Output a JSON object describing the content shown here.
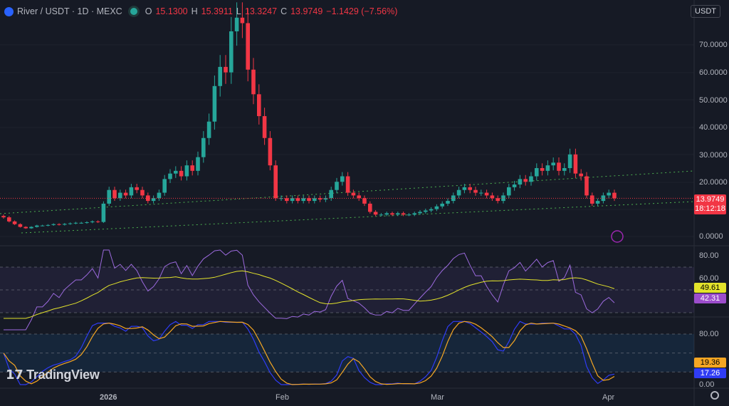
{
  "header": {
    "symbol": "River / USDT · 1D · MEXC",
    "o_label": "O",
    "o": "15.1300",
    "h_label": "H",
    "h": "15.3911",
    "l_label": "L",
    "l": "13.3247",
    "c_label": "C",
    "c": "13.9749",
    "change": "−1.1429 (−7.56%)"
  },
  "currency_button": "USDT",
  "brand": "TradingView",
  "price_axis": [
    "70.0000",
    "60.0000",
    "50.0000",
    "40.0000",
    "30.0000",
    "20.0000",
    "0.0000"
  ],
  "last_price": {
    "price": "13.9749",
    "countdown": "18:12:18"
  },
  "rsi": {
    "axis": [
      "80.00",
      "60.00"
    ],
    "ma_value": "49.61",
    "rsi_value": "42.31"
  },
  "stoch": {
    "axis": [
      "80.00",
      "0.00"
    ],
    "d_value": "19.36",
    "k_value": "17.26"
  },
  "time_axis": [
    "2026",
    "Feb",
    "Mar",
    "Apr"
  ],
  "colors": {
    "up": "#26a69a",
    "down": "#f23645",
    "rsi": "#9c6ade",
    "rsi_ma": "#e3e32b",
    "stoch_k": "#2f3cf5",
    "stoch_d": "#f5a623"
  },
  "chart_data": {
    "type": "candlestick",
    "title": "River / USDT · 1D · MEXC",
    "start_date": "2025-12-13",
    "end_date": "2026-04-02",
    "ylim": [
      0,
      80
    ],
    "first_open": 7.5,
    "closes": [
      7,
      5.5,
      4.5,
      3.5,
      3,
      3.5,
      4,
      4,
      4.2,
      4.5,
      4.3,
      4.6,
      4.8,
      5,
      5,
      5.2,
      5.5,
      5.3,
      12,
      17,
      14,
      16,
      15,
      18,
      17,
      15,
      13,
      14,
      16,
      21,
      23,
      24,
      22,
      26,
      24,
      29,
      36,
      42,
      55,
      62,
      60,
      75,
      80,
      78,
      61,
      52,
      44,
      36,
      26,
      14,
      14,
      13,
      14,
      13,
      14,
      13,
      14,
      13.5,
      14,
      17,
      20,
      22,
      16,
      15,
      14,
      12,
      9,
      8,
      8,
      8.5,
      8,
      8.5,
      8,
      8,
      8.5,
      9,
      9.5,
      10,
      11,
      12,
      13,
      15,
      17,
      18,
      17,
      16,
      16,
      15,
      14,
      13,
      15,
      18,
      19,
      21,
      20,
      22,
      25,
      24,
      26,
      27,
      24,
      25,
      30,
      23,
      22,
      15,
      12,
      13,
      15,
      16,
      13.9749
    ]
  }
}
